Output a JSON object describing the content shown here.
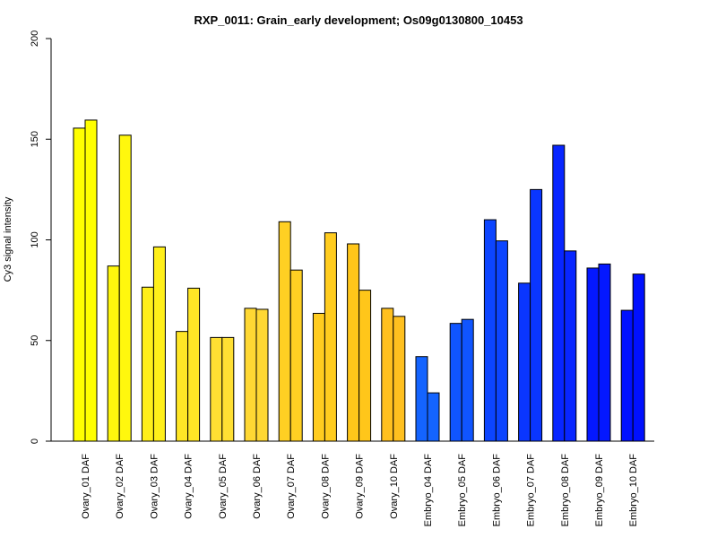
{
  "chart_data": {
    "type": "bar",
    "title": "RXP_0011: Grain_early development; Os09g0130800_10453",
    "xlabel": "",
    "ylabel": "Cy3 signal intensity",
    "ylim": [
      0,
      200
    ],
    "yticks": [
      0,
      50,
      100,
      150,
      200
    ],
    "categories": [
      "Ovary_01 DAF",
      "Ovary_02 DAF",
      "Ovary_03 DAF",
      "Ovary_04 DAF",
      "Ovary_05 DAF",
      "Ovary_06 DAF",
      "Ovary_07 DAF",
      "Ovary_08 DAF",
      "Ovary_09 DAF",
      "Ovary_10 DAF",
      "Embryo_04 DAF",
      "Embryo_05 DAF",
      "Embryo_06 DAF",
      "Embryo_07 DAF",
      "Embryo_08 DAF",
      "Embryo_09 DAF",
      "Embryo_10 DAF"
    ],
    "series": [
      {
        "values": [
          155.5,
          87,
          76.5,
          54.5,
          51.5,
          66,
          109,
          63.5,
          98,
          66,
          42,
          58.5,
          110,
          78.5,
          147,
          86,
          65
        ]
      },
      {
        "values": [
          159.5,
          152,
          96.5,
          76,
          51.5,
          65.5,
          85,
          103.5,
          75,
          62,
          24,
          60.5,
          99.5,
          125,
          94.5,
          88,
          83
        ]
      }
    ],
    "colors": [
      "#ffff00",
      "#fff70d",
      "#ffef1a",
      "#ffe626",
      "#ffe033",
      "#ffd833",
      "#ffd023",
      "#ffcc1f",
      "#ffc61a",
      "#ffc01f",
      "#1464ff",
      "#1055ff",
      "#0c45ff",
      "#0a36ff",
      "#0826ff",
      "#0418ff",
      "#0010ff"
    ],
    "grid": false,
    "legend": "none"
  }
}
